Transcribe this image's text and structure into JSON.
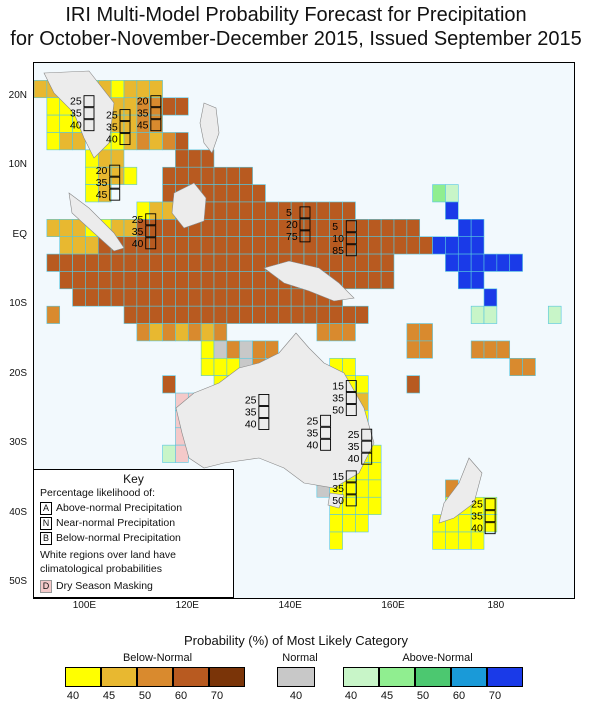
{
  "title": {
    "line1": "IRI Multi-Model Probability Forecast for Precipitation",
    "line2": "for October-November-December 2015, Issued September 2015"
  },
  "axes": {
    "lat_labels": [
      "20N",
      "10N",
      "EQ",
      "10S",
      "20S",
      "30S",
      "40S",
      "50S"
    ],
    "lon_labels": [
      "100E",
      "120E",
      "140E",
      "160E",
      "180"
    ]
  },
  "key": {
    "title": "Key",
    "subtitle": "Percentage likelihood of:",
    "items": [
      {
        "letter": "A",
        "text": "Above-normal Precipitation"
      },
      {
        "letter": "N",
        "text": "Near-normal Precipitation"
      },
      {
        "letter": "B",
        "text": "Below-normal Precipitation"
      }
    ],
    "note_line1": "White regions over land have",
    "note_line2": "climatological probabilities",
    "dry": {
      "letter": "D",
      "text": "Dry Season Masking",
      "color": "#f4c9c9"
    }
  },
  "legend": {
    "title": "Probability (%) of Most Likely Category",
    "below": {
      "label": "Below-Normal",
      "values": [
        "40",
        "45",
        "50",
        "60",
        "70"
      ],
      "colors": [
        "#ffff00",
        "#e8b830",
        "#d98a2e",
        "#b85a20",
        "#7a3408"
      ]
    },
    "normal": {
      "label": "Normal",
      "values": [
        "40"
      ],
      "colors": [
        "#c8c8c8"
      ]
    },
    "above": {
      "label": "Above-Normal",
      "values": [
        "40",
        "45",
        "50",
        "60",
        "70"
      ],
      "colors": [
        "#c8f5c8",
        "#90ee90",
        "#4cc870",
        "#1a9ad8",
        "#1a3ae8"
      ]
    }
  },
  "annotations": [
    {
      "lon": 97,
      "lat": 19,
      "vals": [
        "25",
        "35",
        "40"
      ]
    },
    {
      "lon": 104,
      "lat": 17,
      "vals": [
        "25",
        "35",
        "40"
      ]
    },
    {
      "lon": 110,
      "lat": 19,
      "vals": [
        "20",
        "35",
        "45"
      ]
    },
    {
      "lon": 102,
      "lat": 9,
      "vals": [
        "20",
        "35",
        "45"
      ]
    },
    {
      "lon": 109,
      "lat": 2,
      "vals": [
        "25",
        "35",
        "40"
      ]
    },
    {
      "lon": 139,
      "lat": 3,
      "vals": [
        "5",
        "20",
        "75"
      ]
    },
    {
      "lon": 148,
      "lat": 1,
      "vals": [
        "5",
        "10",
        "85"
      ]
    },
    {
      "lon": 131,
      "lat": -24,
      "vals": [
        "25",
        "35",
        "40"
      ]
    },
    {
      "lon": 148,
      "lat": -22,
      "vals": [
        "15",
        "35",
        "50"
      ]
    },
    {
      "lon": 143,
      "lat": -27,
      "vals": [
        "25",
        "35",
        "40"
      ]
    },
    {
      "lon": 151,
      "lat": -29,
      "vals": [
        "25",
        "35",
        "40"
      ]
    },
    {
      "lon": 148,
      "lat": -35,
      "vals": [
        "15",
        "35",
        "50"
      ]
    },
    {
      "lon": 175,
      "lat": -39,
      "vals": [
        "25",
        "35",
        "40"
      ]
    }
  ]
}
